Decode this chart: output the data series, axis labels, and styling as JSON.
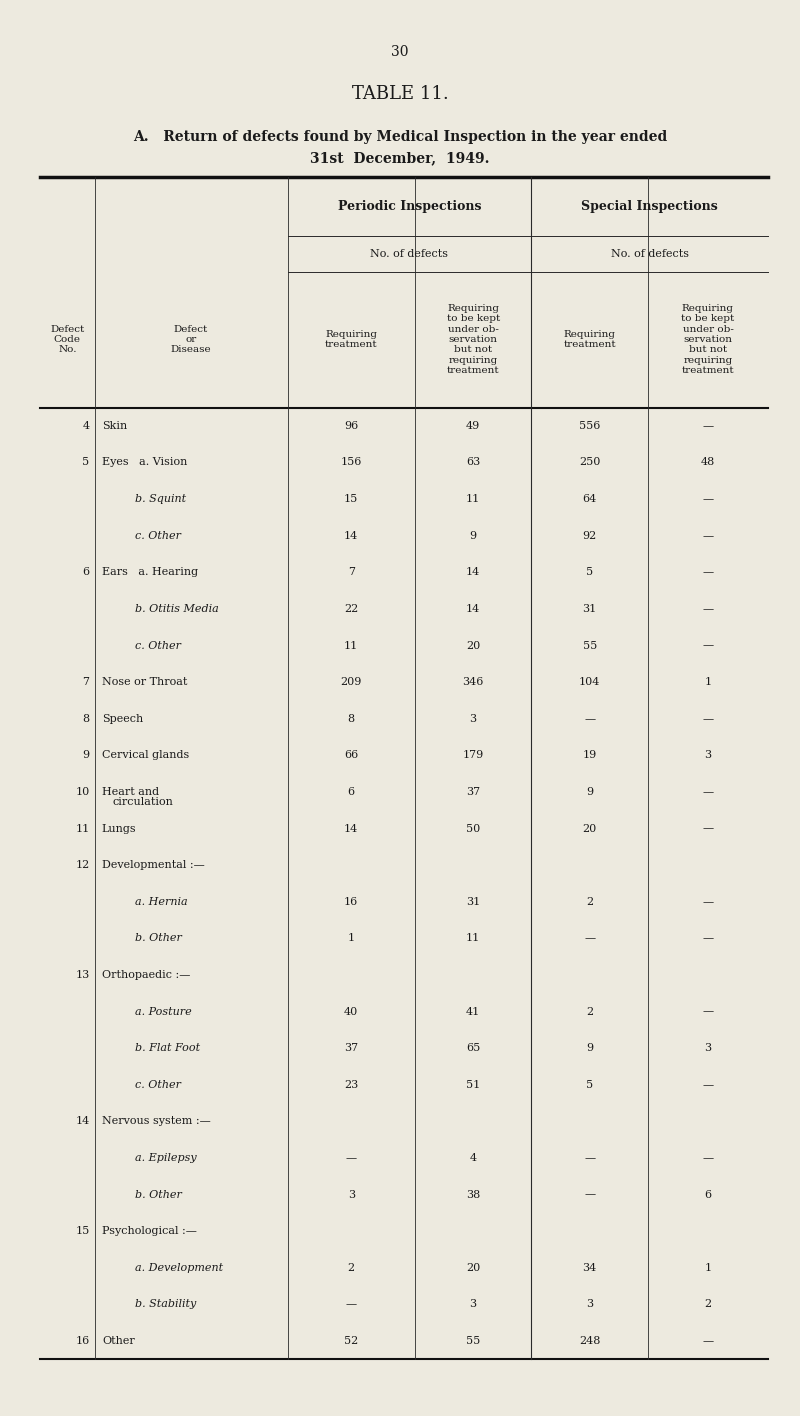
{
  "page_number": "30",
  "title": "TABLE 11.",
  "subtitle_a": "A.   Return of defects found by Medical Inspection in the year ended",
  "subtitle_b": "31st  December,  1949.",
  "background_color": "#edeadf",
  "rows": [
    [
      "4",
      "Skin",
      "96",
      "49",
      "556",
      "—"
    ],
    [
      "5",
      "Eyes   a. Vision",
      "156",
      "63",
      "250",
      "48"
    ],
    [
      "",
      "b. Squint",
      "15",
      "11",
      "64",
      "—"
    ],
    [
      "",
      "c. Other",
      "14",
      "9",
      "92",
      "—"
    ],
    [
      "6",
      "Ears   a. Hearing",
      "7",
      "14",
      "5",
      "—"
    ],
    [
      "",
      "b. Otitis Media",
      "22",
      "14",
      "31",
      "—"
    ],
    [
      "",
      "c. Other",
      "11",
      "20",
      "55",
      "—"
    ],
    [
      "7",
      "Nose or Throat",
      "209",
      "346",
      "104",
      "1"
    ],
    [
      "8",
      "Speech",
      "8",
      "3",
      "—",
      "—"
    ],
    [
      "9",
      "Cervical glands",
      "66",
      "179",
      "19",
      "3"
    ],
    [
      "10",
      "Heart and",
      "6",
      "37",
      "9",
      "—"
    ],
    [
      "11",
      "Lungs",
      "14",
      "50",
      "20",
      "—"
    ],
    [
      "12",
      "Developmental :—",
      "",
      "",
      "",
      ""
    ],
    [
      "",
      "a. Hernia",
      "16",
      "31",
      "2",
      "—"
    ],
    [
      "",
      "b. Other",
      "1",
      "11",
      "—",
      "—"
    ],
    [
      "13",
      "Orthopaedic :—",
      "",
      "",
      "",
      ""
    ],
    [
      "",
      "a. Posture",
      "40",
      "41",
      "2",
      "—"
    ],
    [
      "",
      "b. Flat Foot",
      "37",
      "65",
      "9",
      "3"
    ],
    [
      "",
      "c. Other",
      "23",
      "51",
      "5",
      "—"
    ],
    [
      "14",
      "Nervous system :—",
      "",
      "",
      "",
      ""
    ],
    [
      "",
      "a. Epilepsy",
      "—",
      "4",
      "—",
      "—"
    ],
    [
      "",
      "b. Other",
      "3",
      "38",
      "—",
      "6"
    ],
    [
      "15",
      "Psychological :—",
      "",
      "",
      "",
      ""
    ],
    [
      "",
      "a. Development",
      "2",
      "20",
      "34",
      "1"
    ],
    [
      "",
      "b. Stability",
      "—",
      "3",
      "3",
      "2"
    ],
    [
      "16",
      "Other",
      "52",
      "55",
      "248",
      "—"
    ]
  ],
  "row10_sub": "circulation"
}
